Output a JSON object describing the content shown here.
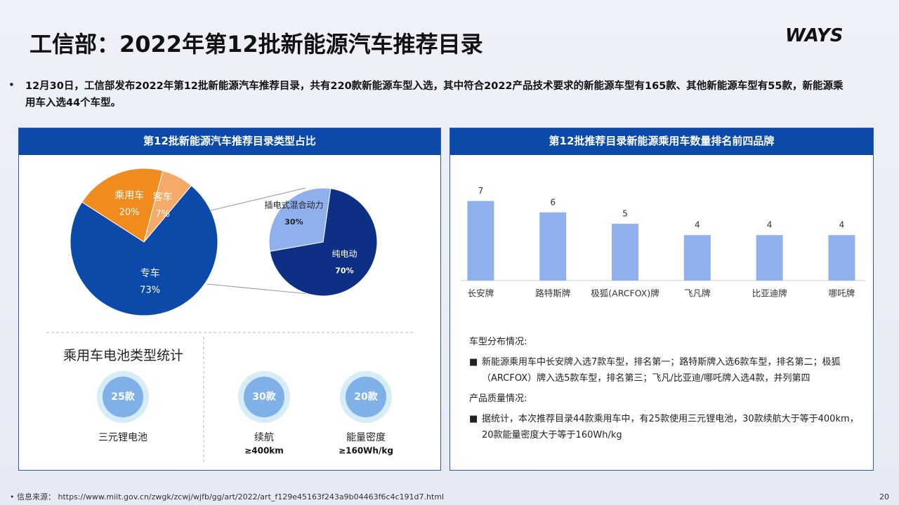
{
  "title": "工信部：2022年第12批新能源汽车推荐目录",
  "logo": "WAYS",
  "bullet": "12月30日，工信部发布2022年第12批新能源汽车推荐目录，共有220款新能源车型入选，其中符合2022产品技术要求的新能源车型有165款、其他新能源车型有55款，新能源乘用车入选44个车型。",
  "chart_data": [
    {
      "type": "pie",
      "title": "第12批新能源汽车推荐目录类型占比",
      "categories": [
        "专车",
        "乘用车",
        "客车"
      ],
      "values": [
        73,
        20,
        7
      ],
      "value_labels": [
        "73%",
        "20%",
        "7%"
      ],
      "colors": [
        "#0b4aa8",
        "#f08c1e",
        "#f5aa6a"
      ]
    },
    {
      "type": "pie",
      "categories": [
        "纯电动",
        "插电式混合动力"
      ],
      "values": [
        70,
        30
      ],
      "value_labels": [
        "70%",
        "30%"
      ],
      "colors": [
        "#0d2f86",
        "#8fb0ec"
      ]
    },
    {
      "type": "bar",
      "title": "第12批推荐目录新能源乘用车数量排名前四品牌",
      "categories": [
        "长安牌",
        "路特斯牌",
        "极狐(ARCFOX)牌",
        "飞凡牌",
        "比亚迪牌",
        "哪吒牌"
      ],
      "values": [
        7,
        6,
        5,
        4,
        4,
        4
      ],
      "color": "#8fb0ec"
    }
  ],
  "battery": {
    "title": "乘用车电池类型统计",
    "items": [
      {
        "value": "25款",
        "label": "三元锂电池"
      },
      {
        "value": "30款",
        "label": "续航",
        "sub": "≥400km"
      },
      {
        "value": "20款",
        "label": "能量密度",
        "sub": "≥160Wh/kg"
      }
    ]
  },
  "notes": {
    "h1": "车型分布情况:",
    "p1": "新能源乘用车中长安牌入选7款车型，排名第一；路特斯牌入选6款车型，排名第二；极狐（ARCFOX）牌入选5款车型，排名第三；飞凡/比亚迪/哪吒牌入选4款，并列第四",
    "h2": "产品质量情况:",
    "p2": "据统计，本次推荐目录44款乘用车中，有25款使用三元锂电池，30款续航大于等于400km，20款能量密度大于等于160Wh/kg"
  },
  "source": {
    "label": "信息来源：",
    "url": "https://www.miit.gov.cn/zwgk/zcwj/wjfb/gg/art/2022/art_f129e45163f243a9b04463f6c4c191d7.html"
  },
  "page": "20"
}
